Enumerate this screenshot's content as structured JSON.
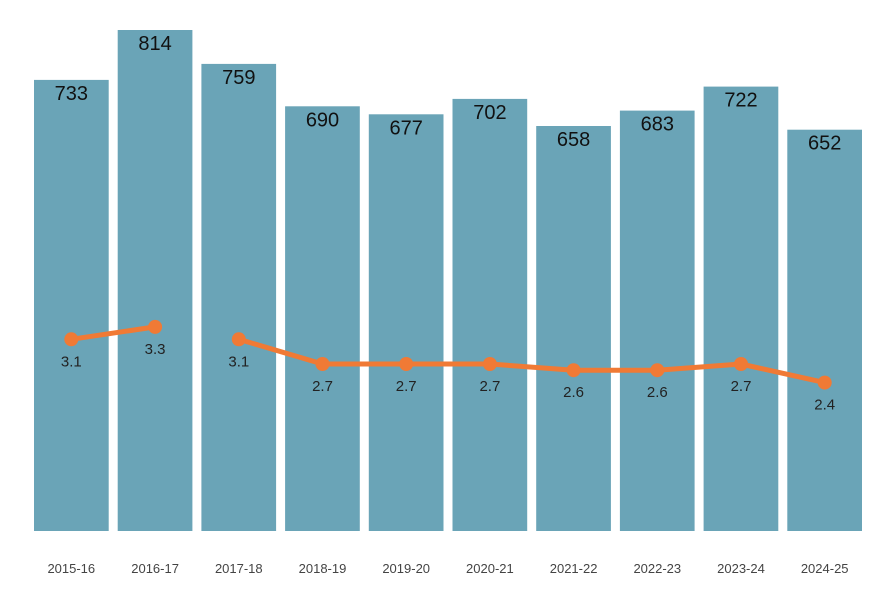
{
  "chart_data": {
    "type": "bar",
    "categories": [
      "2015-16",
      "2016-17",
      "2017-18",
      "2018-19",
      "2019-20",
      "2020-21",
      "2021-22",
      "2022-23",
      "2023-24",
      "2024-25"
    ],
    "series": [
      {
        "type": "bar",
        "values": [
          733,
          814,
          759,
          690,
          677,
          702,
          658,
          683,
          722,
          652
        ],
        "labels": [
          "733",
          "814",
          "759",
          "690",
          "677",
          "702",
          "658",
          "683",
          "722",
          "652"
        ],
        "color": "#6aa4b7"
      },
      {
        "type": "line",
        "values": [
          3.1,
          3.3,
          3.1,
          2.7,
          2.7,
          2.7,
          2.6,
          2.6,
          2.7,
          2.4
        ],
        "labels": [
          "3.1",
          "3.3",
          "3.1",
          "2.7",
          "2.7",
          "2.7",
          "2.6",
          "2.6",
          "2.7",
          "2.4"
        ],
        "segments": [
          [
            0,
            1
          ],
          [
            2,
            9
          ]
        ],
        "color": "#f07a35"
      }
    ],
    "bar_ylim": [
      0,
      814
    ],
    "line_ylim": [
      0,
      8.1
    ],
    "grid": false,
    "legend": "none"
  }
}
